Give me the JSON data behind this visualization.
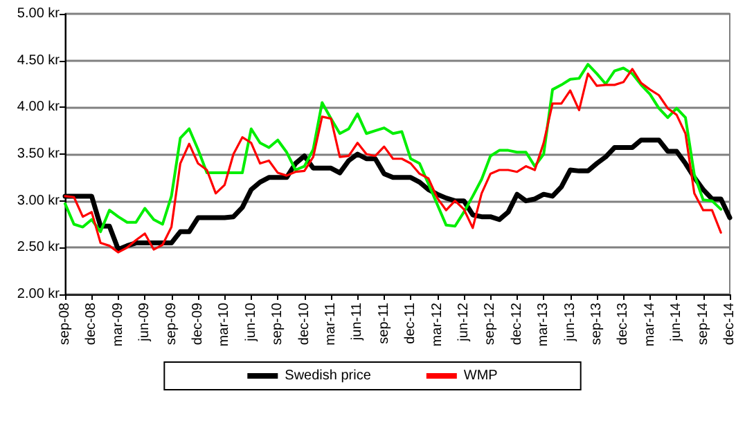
{
  "chart_data": {
    "type": "line",
    "categories": [
      "sep-08",
      null,
      null,
      "dec-08",
      null,
      null,
      "mar-09",
      null,
      null,
      "jun-09",
      null,
      null,
      "sep-09",
      null,
      null,
      "dec-09",
      null,
      null,
      "mar-10",
      null,
      null,
      "jun-10",
      null,
      null,
      "sep-10",
      null,
      null,
      "dec-10",
      null,
      null,
      "mar-11",
      null,
      null,
      "jun-11",
      null,
      null,
      "sep-11",
      null,
      null,
      "dec-11",
      null,
      null,
      "mar-12",
      null,
      null,
      "jun-12",
      null,
      null,
      "sep-12",
      null,
      null,
      "dec-12",
      null,
      null,
      "mar-13",
      null,
      null,
      "jun-13",
      null,
      null,
      "sep-13",
      null,
      null,
      "dec-13",
      null,
      null,
      "mar-14",
      null,
      null,
      "jun-14",
      null,
      null,
      "sep-14",
      null,
      null,
      "dec-14"
    ],
    "series": [
      {
        "name": "Swedish price",
        "color": "#000000",
        "values": [
          3.05,
          3.05,
          3.05,
          3.05,
          2.73,
          2.73,
          2.48,
          2.52,
          2.55,
          2.55,
          2.55,
          2.55,
          2.55,
          2.67,
          2.67,
          2.82,
          2.82,
          2.82,
          2.82,
          2.83,
          2.93,
          3.12,
          3.2,
          3.25,
          3.25,
          3.25,
          3.4,
          3.48,
          3.35,
          3.35,
          3.35,
          3.3,
          3.43,
          3.5,
          3.45,
          3.45,
          3.29,
          3.25,
          3.25,
          3.25,
          3.2,
          3.12,
          3.07,
          3.03,
          3.0,
          3.0,
          2.85,
          2.83,
          2.83,
          2.8,
          2.88,
          3.07,
          3.0,
          3.02,
          3.07,
          3.05,
          3.15,
          3.33,
          3.32,
          3.32,
          3.4,
          3.47,
          3.57,
          3.57,
          3.57,
          3.65,
          3.65,
          3.65,
          3.53,
          3.53,
          3.4,
          3.25,
          3.12,
          3.02,
          3.02,
          2.82
        ]
      },
      {
        "color": "#00ee00",
        "values": [
          2.97,
          2.75,
          2.72,
          2.8,
          2.67,
          2.9,
          2.83,
          2.77,
          2.77,
          2.92,
          2.8,
          2.75,
          3.05,
          3.67,
          3.77,
          3.55,
          3.3,
          3.3,
          3.3,
          3.3,
          3.3,
          3.77,
          3.62,
          3.57,
          3.65,
          3.52,
          3.33,
          3.37,
          3.55,
          4.05,
          3.88,
          3.72,
          3.77,
          3.93,
          3.72,
          3.75,
          3.78,
          3.72,
          3.74,
          3.45,
          3.4,
          3.18,
          2.96,
          2.74,
          2.73,
          2.88,
          3.05,
          3.23,
          3.48,
          3.54,
          3.54,
          3.52,
          3.52,
          3.37,
          3.5,
          4.19,
          4.24,
          4.3,
          4.31,
          4.46,
          4.36,
          4.25,
          4.39,
          4.42,
          4.36,
          4.24,
          4.14,
          3.99,
          3.89,
          3.99,
          3.89,
          3.28,
          3.01,
          3.0,
          2.91,
          null
        ]
      },
      {
        "name": "WMP",
        "color": "#ff0000",
        "values": [
          3.05,
          3.04,
          2.83,
          2.88,
          2.55,
          2.52,
          2.45,
          2.5,
          2.58,
          2.65,
          2.48,
          2.53,
          2.72,
          3.4,
          3.61,
          3.4,
          3.33,
          3.08,
          3.17,
          3.5,
          3.68,
          3.62,
          3.4,
          3.43,
          3.3,
          3.27,
          3.31,
          3.32,
          3.47,
          3.9,
          3.88,
          3.47,
          3.48,
          3.62,
          3.5,
          3.48,
          3.58,
          3.45,
          3.45,
          3.4,
          3.29,
          3.24,
          3.03,
          2.9,
          3.0,
          2.91,
          2.71,
          3.08,
          3.29,
          3.33,
          3.33,
          3.31,
          3.37,
          3.33,
          3.62,
          4.04,
          4.04,
          4.18,
          3.97,
          4.36,
          4.23,
          4.24,
          4.24,
          4.27,
          4.41,
          4.26,
          4.19,
          4.13,
          3.99,
          3.92,
          3.72,
          3.08,
          2.9,
          2.9,
          2.66,
          null
        ]
      }
    ],
    "ylim": [
      2,
      5
    ],
    "yticks": [
      {
        "value": 2,
        "label": "2.00 kr"
      },
      {
        "value": 2.5,
        "label": "2.50 kr"
      },
      {
        "value": 3,
        "label": "3.00 kr"
      },
      {
        "value": 3.5,
        "label": "3.50 kr"
      },
      {
        "value": 4,
        "label": "4.00 kr"
      },
      {
        "value": 4.5,
        "label": "4.50 kr"
      },
      {
        "value": 5,
        "label": "5.00 kr"
      }
    ],
    "grid": "y",
    "legend": "bottom",
    "marker": "none",
    "line_style": "solid"
  }
}
